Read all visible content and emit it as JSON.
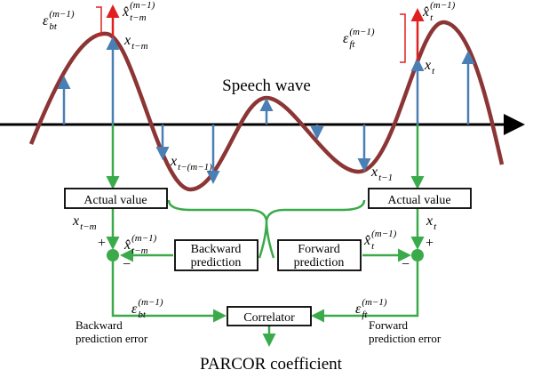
{
  "title": "Speech wave",
  "boxes": {
    "actual_left": "Actual value",
    "actual_right": "Actual value",
    "backward": [
      "Backward",
      "prediction"
    ],
    "forward": [
      "Forward",
      "prediction"
    ],
    "correlator": "Correlator"
  },
  "error_labels": {
    "backward": [
      "Backward",
      "prediction error"
    ],
    "forward": [
      "Forward",
      "prediction error"
    ]
  },
  "signs": [
    "+",
    "−",
    "+",
    "−"
  ],
  "output": "PARCOR coefficient",
  "math_labels": [
    {
      "base": "ε",
      "sub": "bt",
      "sup": "(m−1)"
    },
    {
      "base": "x̂",
      "sub": "t−m",
      "sup": "(m−1)"
    },
    {
      "base": "x",
      "sub": "t−m"
    },
    {
      "base": "x̂",
      "sub": "t",
      "sup": "(m−1)"
    },
    {
      "base": "ε",
      "sub": "ft",
      "sup": "(m−1)"
    },
    {
      "base": "x",
      "sub": "t"
    },
    {
      "base": "x",
      "sub": "t−(m−1)"
    },
    {
      "base": "x",
      "sub": "t−1"
    },
    {
      "base": "x",
      "sub": "t−m"
    },
    {
      "base": "x",
      "sub": "t"
    },
    {
      "base": "x̂",
      "sub": "t−m",
      "sup": "(m−1)"
    },
    {
      "base": "x̂",
      "sub": "t",
      "sup": "(m−1)"
    },
    {
      "base": "ε",
      "sub": "bt",
      "sup": "(m−1)"
    },
    {
      "base": "ε",
      "sub": "ft",
      "sup": "(m−1)"
    }
  ]
}
